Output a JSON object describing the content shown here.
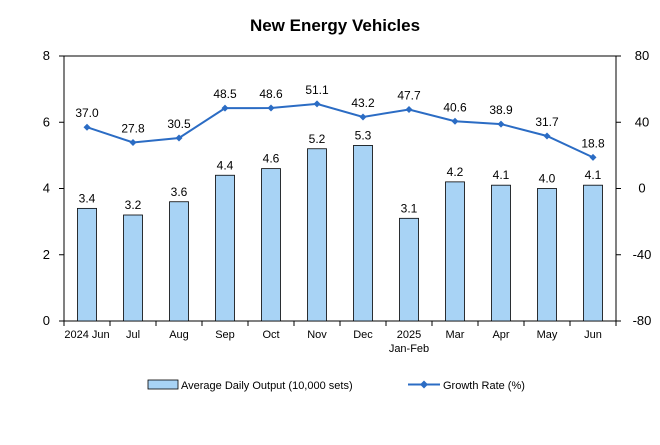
{
  "chart_data": {
    "type": "bar",
    "title": "New Energy Vehicles",
    "categories": [
      "2024 Jun",
      "Jul",
      "Aug",
      "Sep",
      "Oct",
      "Nov",
      "Dec",
      "2025 Jan-Feb",
      "Mar",
      "Apr",
      "May",
      "Jun"
    ],
    "series": [
      {
        "name": "Average Daily Output (10,000 sets)",
        "type": "bar",
        "axis": "left",
        "values": [
          3.4,
          3.2,
          3.6,
          4.4,
          4.6,
          5.2,
          5.3,
          3.1,
          4.2,
          4.1,
          4.0,
          4.1
        ],
        "labels": [
          "3.4",
          "3.2",
          "3.6",
          "4.4",
          "4.6",
          "5.2",
          "5.3",
          "3.1",
          "4.2",
          "4.1",
          "4.0",
          "4.1"
        ]
      },
      {
        "name": "Growth Rate (%)",
        "type": "line",
        "axis": "right",
        "values": [
          37.0,
          27.8,
          30.5,
          48.5,
          48.6,
          51.1,
          43.2,
          47.7,
          40.6,
          38.9,
          31.7,
          18.8
        ],
        "labels": [
          "37.0",
          "27.8",
          "30.5",
          "48.5",
          "48.6",
          "51.1",
          "43.2",
          "47.7",
          "40.6",
          "38.9",
          "31.7",
          "18.8"
        ]
      }
    ],
    "y_left": {
      "range": [
        0,
        8
      ],
      "ticks": [
        "0",
        "2",
        "4",
        "6",
        "8"
      ]
    },
    "y_right": {
      "range": [
        -80,
        80
      ],
      "ticks": [
        "-80",
        "-40",
        "0",
        "40",
        "80"
      ]
    },
    "grid": false,
    "legend_position": "bottom",
    "colors": {
      "bar_fill": "#a8d3f5",
      "bar_stroke": "#000000",
      "line": "#2b6cc4",
      "marker": "#2b6cc4"
    }
  }
}
